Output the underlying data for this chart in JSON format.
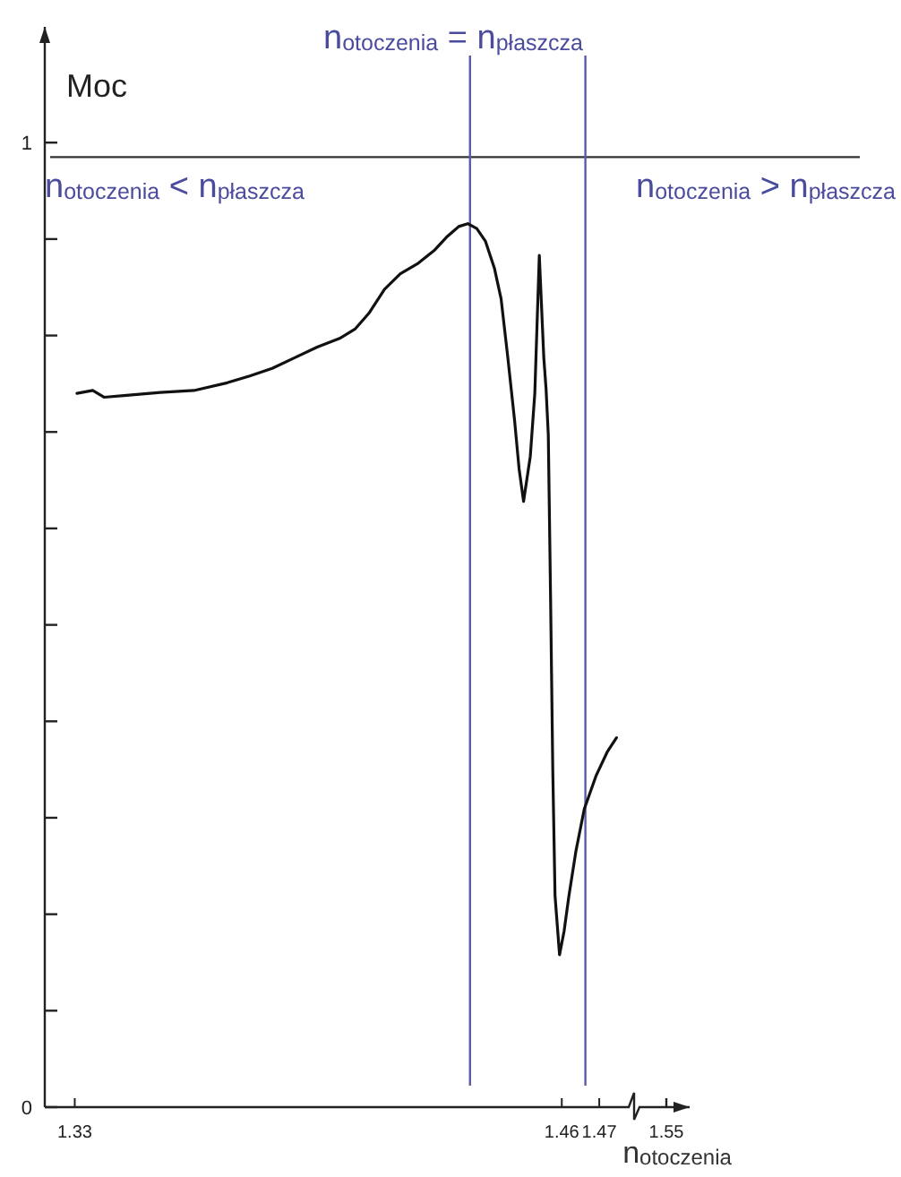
{
  "chart_data": {
    "type": "line",
    "ylabel": "Moc",
    "xlabel": "n$_{otoczenia}$",
    "annotations": [
      "n$_{otoczenia}$ = n$_{płaszcza}$",
      "n$_{otoczenia}$ < n$_{płaszcza}$",
      "n$_{otoczenia}$ > n$_{płaszcza}$",
      "1.55"
    ],
    "xlim": [
      1.322,
      1.475
    ],
    "xticks": [
      1.33,
      1.46,
      1.47
    ],
    "ylim": [
      0,
      1.12
    ],
    "yticks": [
      0,
      {
        "value": 0.1,
        "label": null
      },
      {
        "value": 0.2,
        "label": null
      },
      {
        "value": 0.3,
        "label": null
      },
      {
        "value": 0.4,
        "label": null
      },
      {
        "value": 0.5,
        "label": null
      },
      {
        "value": 0.6,
        "label": null
      },
      {
        "value": 0.7,
        "label": null
      },
      {
        "value": 0.8,
        "label": null
      },
      {
        "value": 0.9,
        "label": null
      },
      1
    ],
    "ref_lines": [
      {
        "axis": "y",
        "value": 0.985,
        "color": "#333333"
      },
      {
        "axis": "x",
        "value": 1.4355,
        "color": "#5a5aa6"
      },
      {
        "axis": "x",
        "value": 1.4663,
        "color": "#5a5aa6"
      }
    ],
    "series": [
      {
        "color": "#111111",
        "x": [
          1.3306,
          1.3348,
          1.3378,
          1.3438,
          1.3528,
          1.3618,
          1.3707,
          1.3767,
          1.3827,
          1.3887,
          1.3947,
          1.4007,
          1.4049,
          1.4085,
          1.4127,
          1.4169,
          1.4217,
          1.4259,
          1.4295,
          1.4325,
          1.4349,
          1.4373,
          1.4396,
          1.442,
          1.4438,
          1.4456,
          1.4474,
          1.4486,
          1.4498,
          1.4516,
          1.4528,
          1.454,
          1.4552,
          1.4558,
          1.4564,
          1.457,
          1.4576,
          1.4582,
          1.4594,
          1.4606,
          1.4619,
          1.4638,
          1.466,
          1.4692,
          1.4721,
          1.4746
        ],
        "values": [
          0.74,
          0.743,
          0.736,
          0.738,
          0.741,
          0.743,
          0.751,
          0.758,
          0.766,
          0.777,
          0.788,
          0.797,
          0.807,
          0.823,
          0.848,
          0.864,
          0.875,
          0.888,
          0.903,
          0.913,
          0.916,
          0.911,
          0.898,
          0.87,
          0.838,
          0.777,
          0.712,
          0.662,
          0.628,
          0.675,
          0.74,
          0.883,
          0.777,
          0.745,
          0.697,
          0.53,
          0.349,
          0.219,
          0.158,
          0.182,
          0.219,
          0.266,
          0.309,
          0.344,
          0.368,
          0.383
        ]
      }
    ],
    "marker": "none",
    "line_style": "solid"
  }
}
